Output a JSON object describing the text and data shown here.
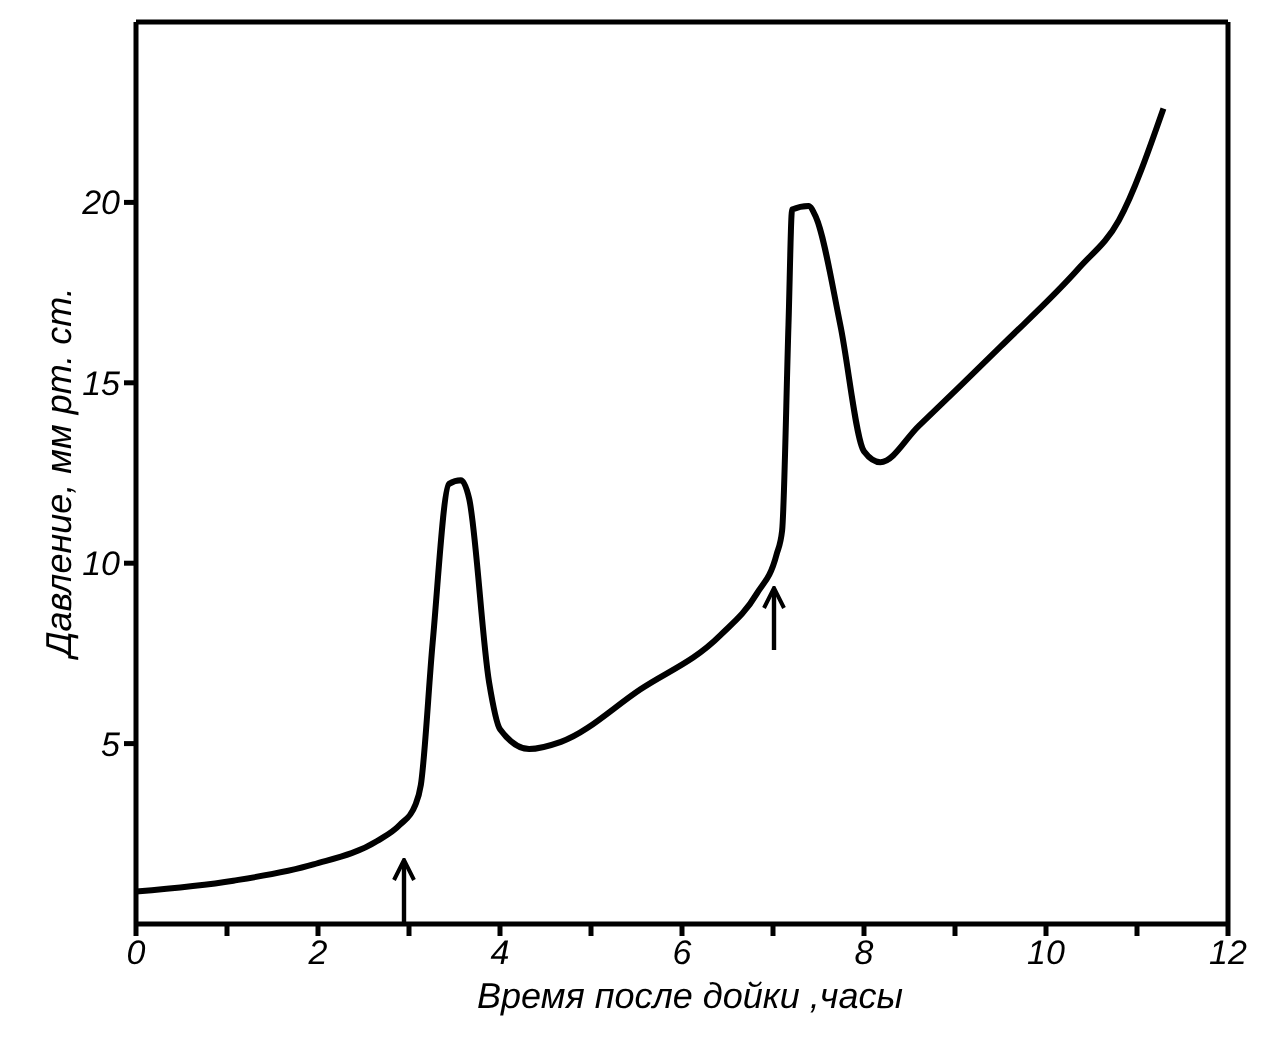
{
  "chart_data": {
    "type": "line",
    "xlabel": "Время после дойки ,часы",
    "ylabel": "Давление, мм рт. ст.",
    "x": [
      0,
      1.07,
      1.95,
      2.65,
      2.9,
      3.07,
      3.13,
      3.26,
      3.44,
      3.57,
      3.66,
      3.88,
      4.0,
      4.32,
      4.67,
      5.54,
      6.42,
      6.82,
      7.04,
      7.1,
      7.17,
      7.21,
      7.39,
      7.47,
      7.74,
      8.0,
      8.18,
      8.6,
      9.5,
      10.37,
      10.8,
      11.29
    ],
    "series": [
      {
        "color": "#000000",
        "values": [
          0.9,
          1.2,
          1.65,
          2.3,
          2.75,
          3.3,
          3.85,
          7.8,
          12.2,
          12.3,
          11.8,
          6.7,
          5.4,
          4.85,
          5.05,
          6.5,
          8.0,
          9.15,
          10.25,
          10.9,
          16.6,
          19.8,
          19.9,
          19.6,
          16.6,
          13.1,
          12.8,
          13.8,
          16.0,
          18.2,
          19.5,
          22.6
        ]
      }
    ],
    "xlim": [
      0,
      12
    ],
    "ylim": [
      0,
      25
    ],
    "xticks": [
      0,
      {
        "value": 1,
        "label": null
      },
      2,
      {
        "value": 3,
        "label": null
      },
      4,
      {
        "value": 5,
        "label": null
      },
      6,
      {
        "value": 7,
        "label": null
      },
      8,
      {
        "value": 9,
        "label": null
      },
      10,
      {
        "value": 11,
        "label": null
      },
      12
    ],
    "yticks": [
      5,
      10,
      15,
      20
    ],
    "grid": false,
    "marker": "none",
    "line_style": "solid"
  }
}
